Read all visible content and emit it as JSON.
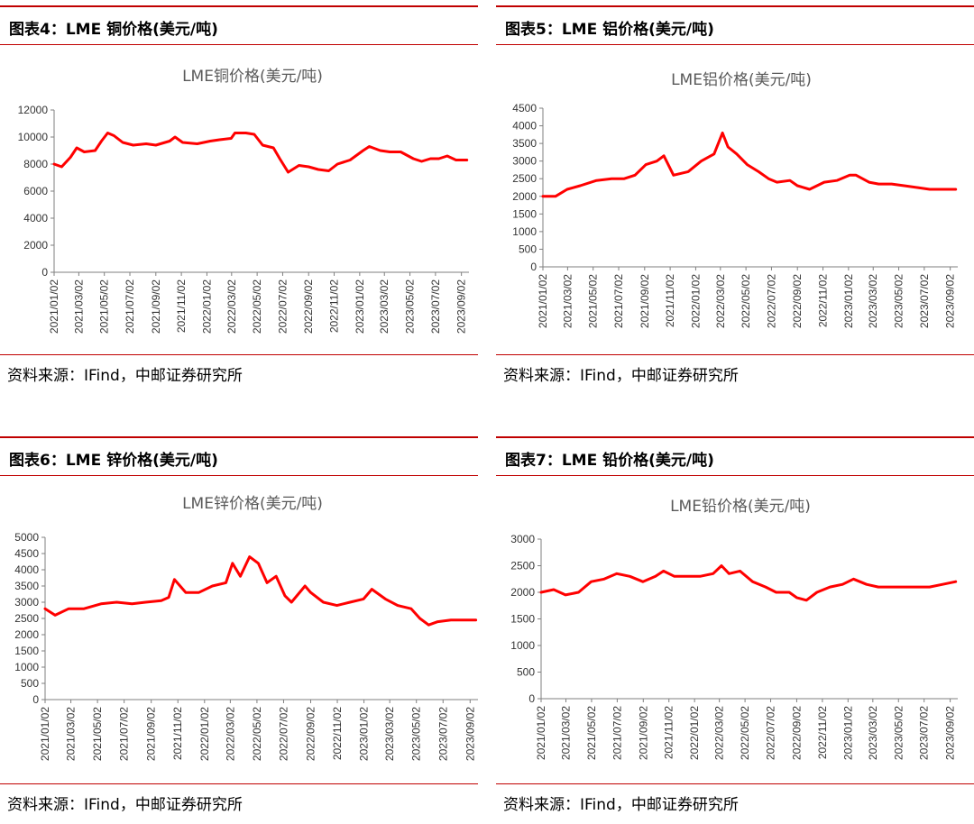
{
  "panels": [
    {
      "heading": "图表4：LME 铜价格(美元/吨)",
      "source": "资料来源：IFind，中邮证券研究所",
      "chart_data": {
        "type": "line",
        "title": "LME铜价格(美元/吨)",
        "ylim": [
          0,
          12000
        ],
        "yticks": [
          0,
          2000,
          4000,
          6000,
          8000,
          10000,
          12000
        ],
        "xticks": [
          "2021/01/02",
          "2021/03/02",
          "2021/05/02",
          "2021/07/02",
          "2021/09/02",
          "2021/11/02",
          "2022/01/02",
          "2022/03/02",
          "2022/05/02",
          "2022/07/02",
          "2022/09/02",
          "2022/11/02",
          "2023/01/02",
          "2023/03/02",
          "2023/05/02",
          "2023/07/02",
          "2023/09/02"
        ],
        "xlim": [
          "2021/01/02",
          "2023/09/20"
        ],
        "grid": false,
        "color": "#ff0000",
        "series": [
          {
            "x": [
              "2021/01/02",
              "2021/01/20",
              "2021/02/10",
              "2021/02/25",
              "2021/03/15",
              "2021/04/10",
              "2021/04/25",
              "2021/05/10",
              "2021/05/25",
              "2021/06/15",
              "2021/07/10",
              "2021/08/10",
              "2021/09/02",
              "2021/10/05",
              "2021/10/18",
              "2021/11/05",
              "2021/12/10",
              "2022/01/10",
              "2022/02/01",
              "2022/03/01",
              "2022/03/10",
              "2022/04/05",
              "2022/04/25",
              "2022/05/15",
              "2022/06/10",
              "2022/06/25",
              "2022/07/15",
              "2022/08/10",
              "2022/09/02",
              "2022/09/25",
              "2022/10/20",
              "2022/11/10",
              "2022/12/10",
              "2023/01/10",
              "2023/01/25",
              "2023/02/20",
              "2023/03/15",
              "2023/04/10",
              "2023/05/10",
              "2023/05/30",
              "2023/06/20",
              "2023/07/10",
              "2023/07/30",
              "2023/08/20",
              "2023/09/15"
            ],
            "y": [
              8000,
              7800,
              8500,
              9200,
              8900,
              9000,
              9700,
              10300,
              10100,
              9600,
              9400,
              9500,
              9400,
              9700,
              10000,
              9600,
              9500,
              9700,
              9800,
              9900,
              10300,
              10300,
              10200,
              9400,
              9200,
              8400,
              7400,
              7900,
              7800,
              7600,
              7500,
              8000,
              8300,
              9000,
              9300,
              9000,
              8900,
              8900,
              8400,
              8200,
              8400,
              8400,
              8600,
              8300,
              8300
            ]
          }
        ]
      }
    },
    {
      "heading": "图表5：LME 铝价格(美元/吨)",
      "source": "资料来源：IFind，中邮证券研究所",
      "chart_data": {
        "type": "line",
        "title": "LME铝价格(美元/吨)",
        "ylim": [
          0,
          4500
        ],
        "yticks": [
          0,
          500,
          1000,
          1500,
          2000,
          2500,
          3000,
          3500,
          4000,
          4500
        ],
        "xticks": [
          "2021/01/02",
          "2021/03/02",
          "2021/05/02",
          "2021/07/02",
          "2021/09/02",
          "2021/11/02",
          "2022/01/02",
          "2022/03/02",
          "2022/05/02",
          "2022/07/02",
          "2022/09/02",
          "2022/11/02",
          "2023/01/02",
          "2023/03/02",
          "2023/05/02",
          "2023/07/02",
          "2023/09/02"
        ],
        "xlim": [
          "2021/01/02",
          "2023/09/20"
        ],
        "grid": false,
        "color": "#ff0000",
        "series": [
          {
            "x": [
              "2021/01/02",
              "2021/02/01",
              "2021/03/01",
              "2021/04/01",
              "2021/05/10",
              "2021/06/15",
              "2021/07/15",
              "2021/08/10",
              "2021/09/05",
              "2021/10/01",
              "2021/10/18",
              "2021/11/10",
              "2021/12/15",
              "2022/01/15",
              "2022/02/15",
              "2022/03/07",
              "2022/03/20",
              "2022/04/10",
              "2022/05/05",
              "2022/06/01",
              "2022/06/25",
              "2022/07/15",
              "2022/08/15",
              "2022/09/02",
              "2022/10/01",
              "2022/11/05",
              "2022/12/05",
              "2023/01/05",
              "2023/01/20",
              "2023/02/20",
              "2023/03/15",
              "2023/04/15",
              "2023/05/15",
              "2023/06/15",
              "2023/07/15",
              "2023/08/15",
              "2023/09/15"
            ],
            "y": [
              2000,
              2000,
              2200,
              2300,
              2450,
              2500,
              2500,
              2600,
              2900,
              3000,
              3150,
              2600,
              2700,
              3000,
              3200,
              3800,
              3400,
              3200,
              2900,
              2700,
              2500,
              2400,
              2450,
              2300,
              2200,
              2400,
              2450,
              2600,
              2600,
              2400,
              2350,
              2350,
              2300,
              2250,
              2200,
              2200,
              2200
            ]
          }
        ]
      }
    },
    {
      "heading": "图表6：LME 锌价格(美元/吨)",
      "source": "资料来源：IFind，中邮证券研究所",
      "chart_data": {
        "type": "line",
        "title": "LME锌价格(美元/吨)",
        "ylim": [
          0,
          5000
        ],
        "yticks": [
          0,
          500,
          1000,
          1500,
          2000,
          2500,
          3000,
          3500,
          4000,
          4500,
          5000
        ],
        "xticks": [
          "2021/01/02",
          "2021/03/02",
          "2021/05/02",
          "2021/07/02",
          "2021/09/02",
          "2021/11/02",
          "2022/01/02",
          "2022/03/02",
          "2022/05/02",
          "2022/07/02",
          "2022/09/02",
          "2022/11/02",
          "2023/01/02",
          "2023/03/02",
          "2023/05/02",
          "2023/07/02",
          "2023/09/02"
        ],
        "xlim": [
          "2021/01/02",
          "2023/09/20"
        ],
        "grid": false,
        "color": "#ff0000",
        "series": [
          {
            "x": [
              "2021/01/02",
              "2021/01/25",
              "2021/02/25",
              "2021/04/01",
              "2021/05/10",
              "2021/06/15",
              "2021/07/20",
              "2021/08/20",
              "2021/09/25",
              "2021/10/12",
              "2021/10/25",
              "2021/11/20",
              "2021/12/20",
              "2022/01/20",
              "2022/02/20",
              "2022/03/07",
              "2022/03/25",
              "2022/04/15",
              "2022/05/05",
              "2022/05/25",
              "2022/06/15",
              "2022/07/05",
              "2022/07/20",
              "2022/08/20",
              "2022/09/02",
              "2022/10/01",
              "2022/11/01",
              "2022/12/01",
              "2023/01/01",
              "2023/01/20",
              "2023/02/20",
              "2023/03/20",
              "2023/04/20",
              "2023/05/10",
              "2023/05/30",
              "2023/06/20",
              "2023/07/20",
              "2023/08/20",
              "2023/09/15"
            ],
            "y": [
              2800,
              2600,
              2800,
              2800,
              2950,
              3000,
              2950,
              3000,
              3050,
              3150,
              3700,
              3300,
              3300,
              3500,
              3600,
              4200,
              3800,
              4400,
              4200,
              3600,
              3800,
              3200,
              3000,
              3500,
              3300,
              3000,
              2900,
              3000,
              3100,
              3400,
              3100,
              2900,
              2800,
              2500,
              2300,
              2400,
              2450,
              2450,
              2450
            ]
          }
        ]
      }
    },
    {
      "heading": "图表7：LME 铅价格(美元/吨)",
      "source": "资料来源：IFind，中邮证券研究所",
      "chart_data": {
        "type": "line",
        "title": "LME铅价格(美元/吨)",
        "ylim": [
          0,
          3000
        ],
        "yticks": [
          0,
          500,
          1000,
          1500,
          2000,
          2500,
          3000
        ],
        "xticks": [
          "2021/01/02",
          "2021/03/02",
          "2021/05/02",
          "2021/07/02",
          "2021/09/02",
          "2021/11/02",
          "2022/01/02",
          "2022/03/02",
          "2022/05/02",
          "2022/07/02",
          "2022/09/02",
          "2022/11/02",
          "2023/01/02",
          "2023/03/02",
          "2023/05/02",
          "2023/07/02",
          "2023/09/02"
        ],
        "xlim": [
          "2021/01/02",
          "2023/09/20"
        ],
        "grid": false,
        "color": "#ff0000",
        "series": [
          {
            "x": [
              "2021/01/02",
              "2021/02/01",
              "2021/03/01",
              "2021/04/01",
              "2021/05/01",
              "2021/06/01",
              "2021/07/01",
              "2021/08/01",
              "2021/09/01",
              "2021/10/01",
              "2021/10/20",
              "2021/11/15",
              "2021/12/15",
              "2022/01/15",
              "2022/02/15",
              "2022/03/07",
              "2022/03/25",
              "2022/04/20",
              "2022/05/20",
              "2022/06/20",
              "2022/07/15",
              "2022/08/15",
              "2022/09/02",
              "2022/09/25",
              "2022/10/20",
              "2022/11/20",
              "2022/12/20",
              "2023/01/15",
              "2023/02/15",
              "2023/03/15",
              "2023/04/15",
              "2023/05/15",
              "2023/06/15",
              "2023/07/15",
              "2023/08/15",
              "2023/09/15"
            ],
            "y": [
              2000,
              2050,
              1950,
              2000,
              2200,
              2250,
              2350,
              2300,
              2200,
              2300,
              2400,
              2300,
              2300,
              2300,
              2350,
              2500,
              2350,
              2400,
              2200,
              2100,
              2000,
              2000,
              1900,
              1850,
              2000,
              2100,
              2150,
              2250,
              2150,
              2100,
              2100,
              2100,
              2100,
              2100,
              2150,
              2200
            ]
          }
        ]
      }
    }
  ]
}
